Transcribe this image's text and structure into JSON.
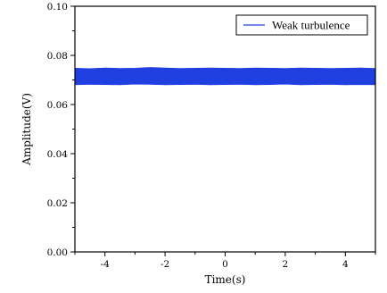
{
  "chart_data": {
    "type": "line",
    "title": "",
    "xlabel": "Time(s)",
    "ylabel": "Amplitude(V)",
    "xlim": [
      -5,
      5
    ],
    "ylim": [
      0.0,
      0.1
    ],
    "x_ticks": [
      -4,
      -2,
      0,
      2,
      4
    ],
    "y_ticks": [
      0.0,
      0.02,
      0.04,
      0.06,
      0.08,
      0.1
    ],
    "x_tick_labels": [
      "-4",
      "-2",
      "0",
      "2",
      "4"
    ],
    "y_tick_labels": [
      "0.00",
      "0.02",
      "0.04",
      "0.06",
      "0.08",
      "0.10"
    ],
    "grid": false,
    "legend_position": "top-right",
    "series": [
      {
        "name": "Weak turbulence",
        "color": "#1f3fe0",
        "x": [
          -5.0,
          -4.5,
          -4.0,
          -3.5,
          -3.0,
          -2.5,
          -2.0,
          -1.5,
          -1.0,
          -0.5,
          0.0,
          0.5,
          1.0,
          1.5,
          2.0,
          2.5,
          3.0,
          3.5,
          4.0,
          4.5,
          5.0
        ],
        "y_mean": [
          0.0715,
          0.0714,
          0.0716,
          0.0715,
          0.0714,
          0.0717,
          0.0716,
          0.0715,
          0.0716,
          0.0715,
          0.0716,
          0.0715,
          0.0714,
          0.0716,
          0.0715,
          0.0714,
          0.0715,
          0.0716,
          0.0714,
          0.0715,
          0.0715
        ],
        "y_min": [
          0.068,
          0.0682,
          0.0681,
          0.068,
          0.0683,
          0.0682,
          0.068,
          0.0681,
          0.0682,
          0.068,
          0.0681,
          0.0682,
          0.068,
          0.0681,
          0.0683,
          0.068,
          0.0681,
          0.0682,
          0.068,
          0.0681,
          0.068
        ],
        "y_max": [
          0.0748,
          0.0746,
          0.0749,
          0.0747,
          0.0748,
          0.0751,
          0.0749,
          0.0747,
          0.0748,
          0.0749,
          0.0748,
          0.0747,
          0.0749,
          0.0748,
          0.0747,
          0.0749,
          0.0748,
          0.0747,
          0.0748,
          0.0749,
          0.0747
        ]
      }
    ]
  }
}
